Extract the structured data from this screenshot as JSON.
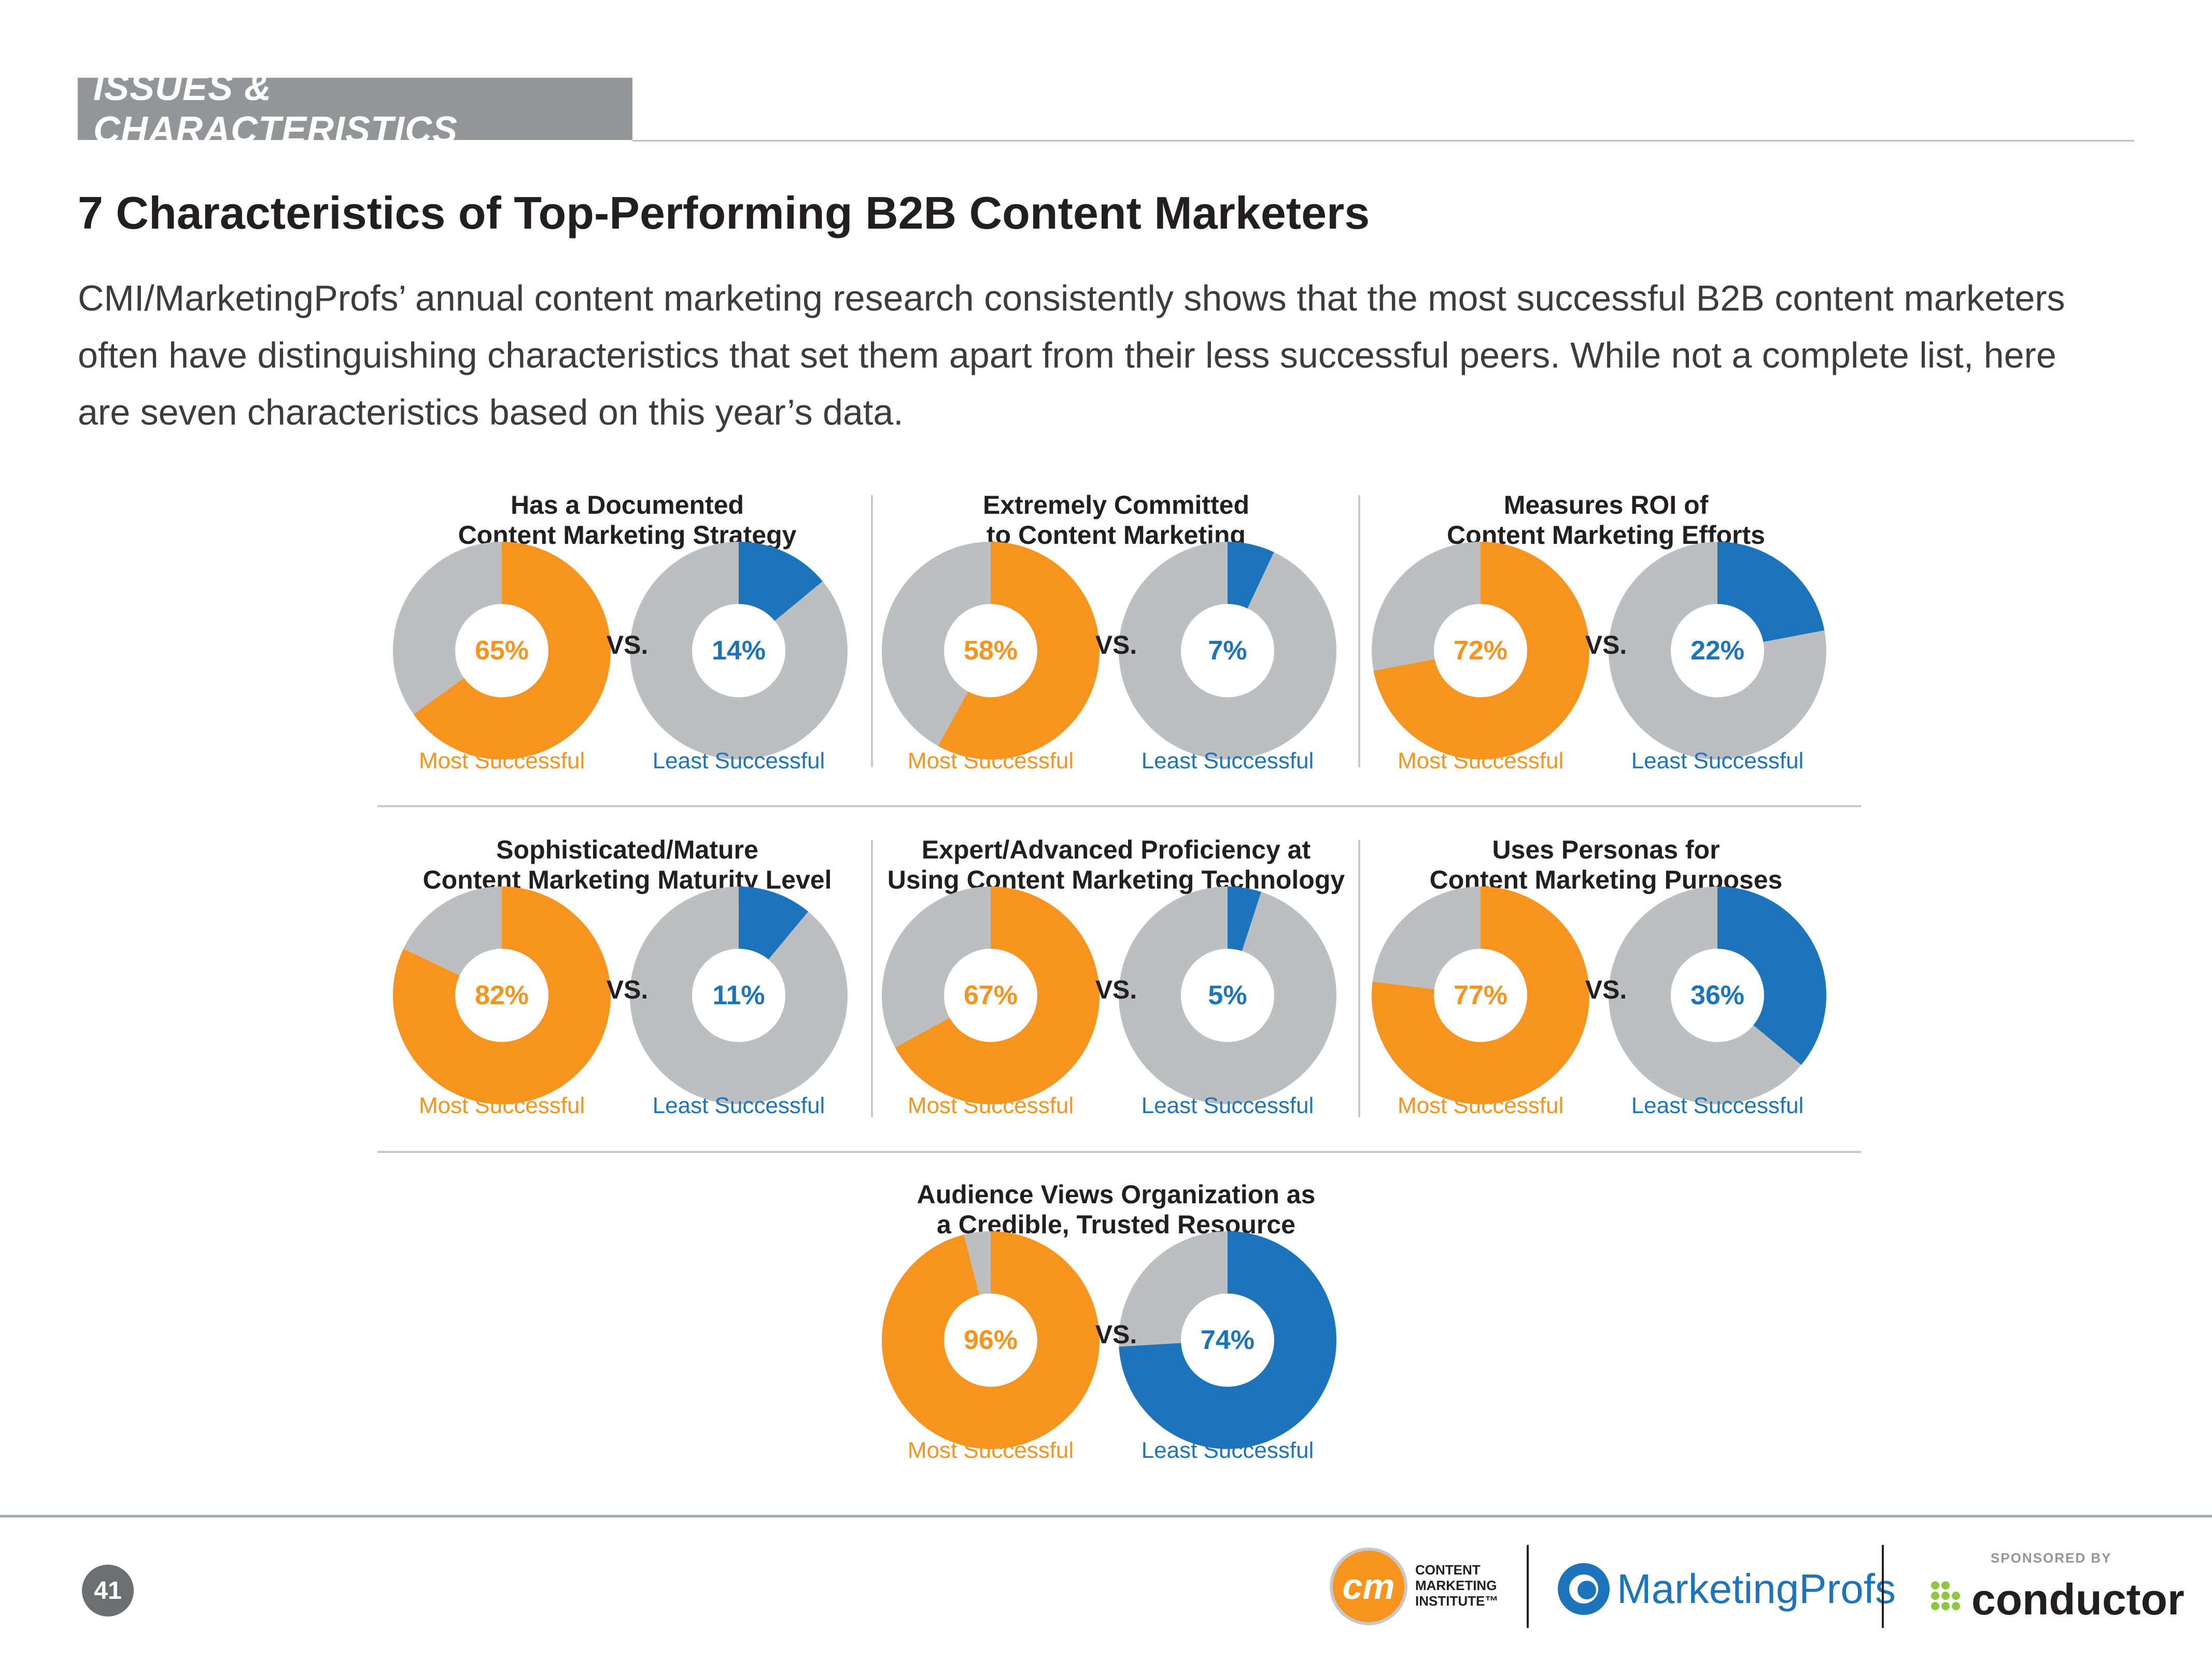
{
  "section_label": "ISSUES & CHARACTERISTICS",
  "title": "7 Characteristics of Top-Performing B2B Content Marketers",
  "intro_lines": [
    "CMI/MarketingProfs’ annual content marketing research consistently shows that the most successful B2B content marketers",
    "often have distinguishing characteristics that set them apart from their less successful peers. While not a complete list, here",
    "are seven characteristics based on this year’s data."
  ],
  "colors": {
    "most": "#f7941d",
    "least": "#1c75bc",
    "remainder": "#bcbec0"
  },
  "vs_label": "VS.",
  "most_label": "Most Successful",
  "least_label": "Least Successful",
  "chart_data": [
    {
      "type": "pie",
      "title_lines": [
        "Has a Documented",
        "Content Marketing Strategy"
      ],
      "categories": [
        "Most Successful",
        "Least Successful"
      ],
      "values": [
        65,
        14
      ],
      "labels": [
        "65%",
        "14%"
      ],
      "unit": "%"
    },
    {
      "type": "pie",
      "title_lines": [
        "Extremely Committed",
        "to Content Marketing"
      ],
      "categories": [
        "Most Successful",
        "Least Successful"
      ],
      "values": [
        58,
        7
      ],
      "labels": [
        "58%",
        "7%"
      ],
      "unit": "%"
    },
    {
      "type": "pie",
      "title_lines": [
        "Measures ROI of",
        "Content Marketing Efforts"
      ],
      "categories": [
        "Most Successful",
        "Least Successful"
      ],
      "values": [
        72,
        22
      ],
      "labels": [
        "72%",
        "22%"
      ],
      "unit": "%"
    },
    {
      "type": "pie",
      "title_lines": [
        "Sophisticated/Mature",
        "Content Marketing Maturity Level"
      ],
      "categories": [
        "Most Successful",
        "Least Successful"
      ],
      "values": [
        82,
        11
      ],
      "labels": [
        "82%",
        "11%"
      ],
      "unit": "%"
    },
    {
      "type": "pie",
      "title_lines": [
        "Expert/Advanced Proficiency at",
        "Using Content Marketing Technology"
      ],
      "categories": [
        "Most Successful",
        "Least Successful"
      ],
      "values": [
        67,
        5
      ],
      "labels": [
        "67%",
        "5%"
      ],
      "unit": "%"
    },
    {
      "type": "pie",
      "title_lines": [
        "Uses Personas for",
        "Content Marketing Purposes"
      ],
      "categories": [
        "Most Successful",
        "Least Successful"
      ],
      "values": [
        77,
        36
      ],
      "labels": [
        "77%",
        "36%"
      ],
      "unit": "%"
    },
    {
      "type": "pie",
      "title_lines": [
        "Audience Views Organization as",
        "a Credible, Trusted Resource"
      ],
      "categories": [
        "Most Successful",
        "Least Successful"
      ],
      "values": [
        96,
        74
      ],
      "labels": [
        "96%",
        "74%"
      ],
      "unit": "%"
    }
  ],
  "footer": {
    "page_number": "41",
    "cmi_mark": "cm",
    "cmi_lines": [
      "CONTENT",
      "MARKETING",
      "INSTITUTE™"
    ],
    "marketingprofs": "MarketingProfs",
    "sponsored_by": "SPONSORED BY",
    "conductor": "conductor"
  }
}
